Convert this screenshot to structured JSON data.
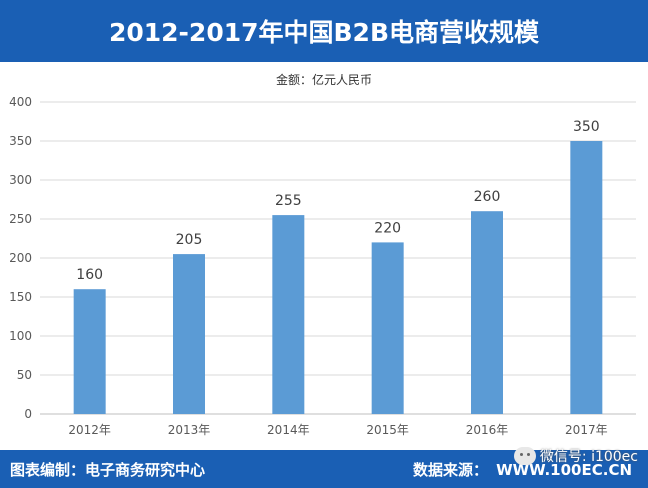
{
  "header": {
    "title": "2012-2017年中国B2B电商营收规模"
  },
  "footer": {
    "compiler": "图表编制：电子商务研究中心",
    "source_label": "数据来源：",
    "source_value": "WWW.100EC.CN",
    "watermark": "微信号: i100ec"
  },
  "chart_data": {
    "type": "bar",
    "title": "",
    "subtitle": "金额：亿元人民币",
    "categories": [
      "2012年",
      "2013年",
      "2014年",
      "2015年",
      "2016年",
      "2017年"
    ],
    "values": [
      160,
      205,
      255,
      220,
      260,
      350
    ],
    "ylim": [
      0,
      400
    ],
    "yticks": [
      0,
      50,
      100,
      150,
      200,
      250,
      300,
      350,
      400
    ],
    "grid": true,
    "bar_color": "#5b9bd5",
    "data_labels": true
  }
}
